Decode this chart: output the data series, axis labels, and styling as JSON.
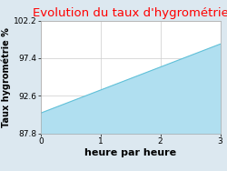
{
  "title": "Evolution du taux d'hygrométrie",
  "title_color": "#ff0000",
  "xlabel": "heure par heure",
  "ylabel": "Taux hygrométrie %",
  "x_data": [
    0,
    3
  ],
  "y_data": [
    90.4,
    99.2
  ],
  "y_fill_bottom": 87.8,
  "fill_color": "#b0dff0",
  "line_color": "#60c0d8",
  "ylim": [
    87.8,
    102.2
  ],
  "xlim": [
    0,
    3
  ],
  "yticks": [
    87.8,
    92.6,
    97.4,
    102.2
  ],
  "xticks": [
    0,
    1,
    2,
    3
  ],
  "background_color": "#dce8f0",
  "plot_bg_color": "#ffffff",
  "grid_color": "#cccccc",
  "title_fontsize": 9.5,
  "label_fontsize": 7,
  "tick_fontsize": 6.5,
  "xlabel_fontsize": 8,
  "linewidth": 0.8
}
